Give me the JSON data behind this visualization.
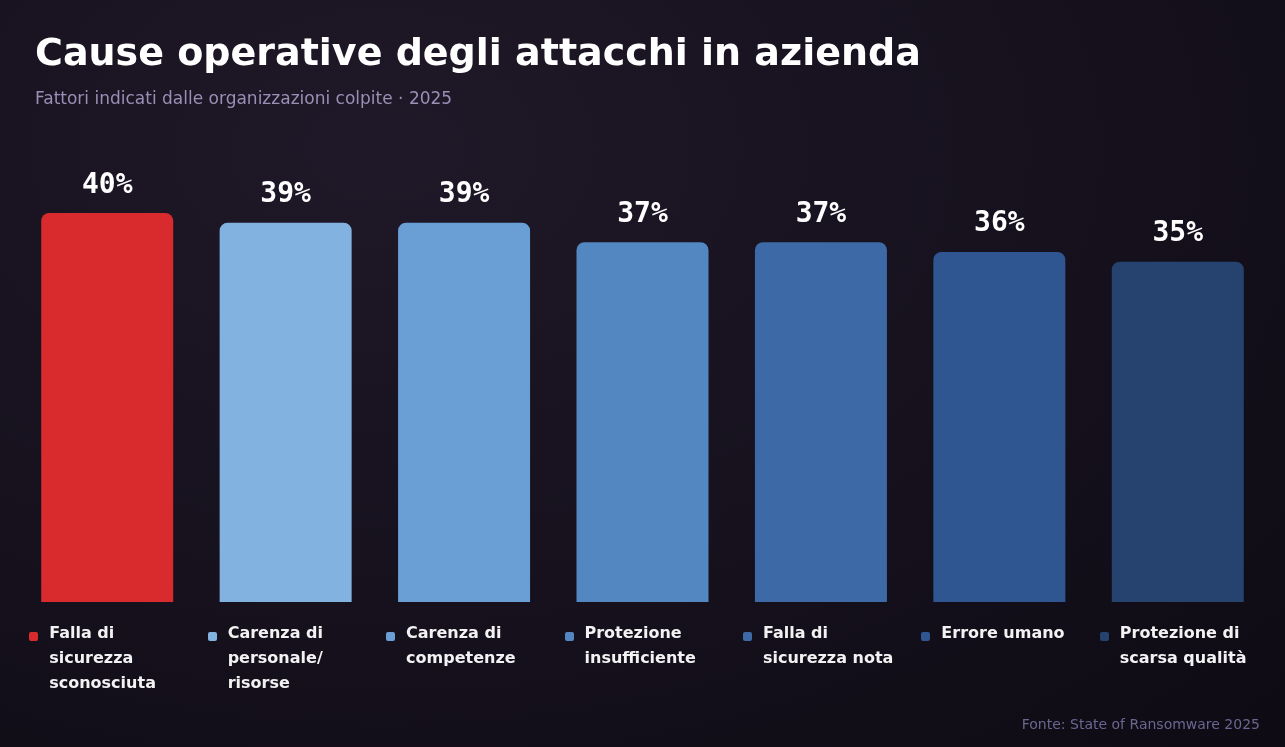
{
  "chart_data": {
    "type": "bar",
    "title": "Cause operative degli attacchi in azienda",
    "subtitle": "Fattori indicati dalle organizzazioni colpite · 2025",
    "categories": [
      "Falla di sicurezza sconosciuta",
      "Carenza di personale/risorse",
      "Carenza di competenze",
      "Protezione insufficiente",
      "Falla di sicurezza nota",
      "Errore umano",
      "Protezione di scarsa qualità"
    ],
    "values": [
      40,
      39,
      39,
      37,
      37,
      36,
      35
    ],
    "value_labels": [
      "40%",
      "39%",
      "39%",
      "37%",
      "37%",
      "36%",
      "35%"
    ],
    "colors": [
      "#d92b2d",
      "#82b2e0",
      "#6a9fd6",
      "#5287c1",
      "#3d6aa6",
      "#2f5690",
      "#26436f"
    ],
    "annotations": [
      "Fonte: State of Ransomware 2025"
    ]
  }
}
